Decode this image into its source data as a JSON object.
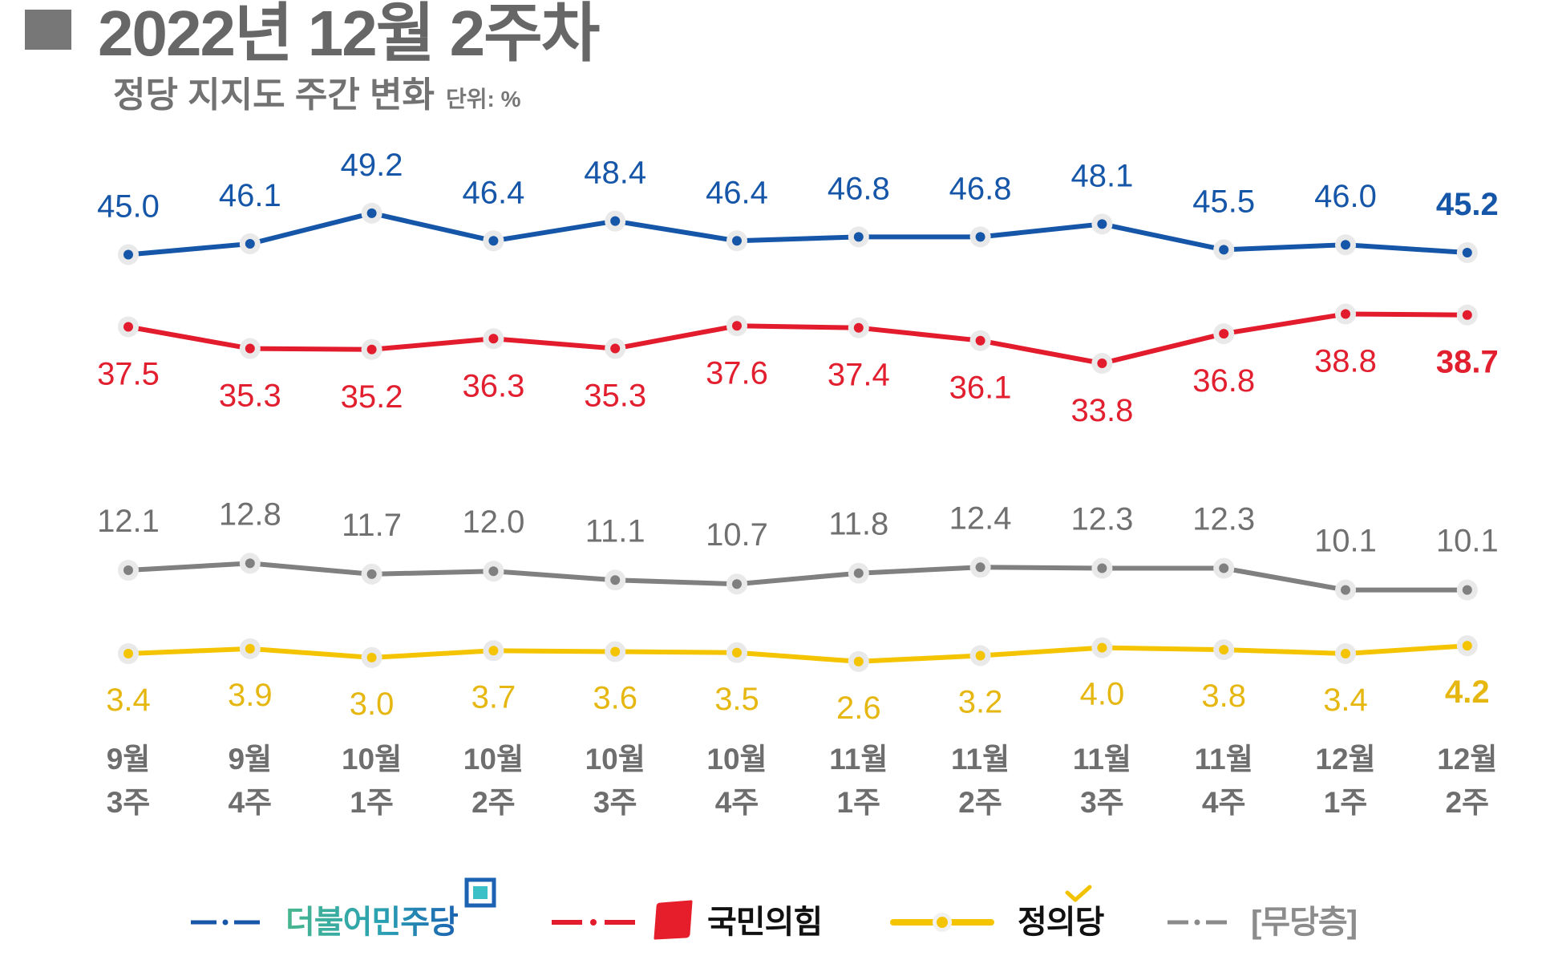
{
  "chart_data": {
    "type": "line",
    "title": "2022년 12월 2주차",
    "subtitle": "정당 지지도 주간 변화",
    "unit_label": "단위: %",
    "legend_position": "bottom",
    "categories": [
      {
        "month": "9월",
        "week": "3주"
      },
      {
        "month": "9월",
        "week": "4주"
      },
      {
        "month": "10월",
        "week": "1주"
      },
      {
        "month": "10월",
        "week": "2주"
      },
      {
        "month": "10월",
        "week": "3주"
      },
      {
        "month": "10월",
        "week": "4주"
      },
      {
        "month": "11월",
        "week": "1주"
      },
      {
        "month": "11월",
        "week": "2주"
      },
      {
        "month": "11월",
        "week": "3주"
      },
      {
        "month": "11월",
        "week": "4주"
      },
      {
        "month": "12월",
        "week": "1주"
      },
      {
        "month": "12월",
        "week": "2주"
      }
    ],
    "series": [
      {
        "name": "더불어민주당",
        "color": "#1656a8",
        "label_color": "#1656a8",
        "values": [
          45.0,
          46.1,
          49.2,
          46.4,
          48.4,
          46.4,
          46.8,
          46.8,
          48.1,
          45.5,
          46.0,
          45.2
        ]
      },
      {
        "name": "국민의힘",
        "color": "#e31c2d",
        "label_color": "#e21f2f",
        "values": [
          37.5,
          35.3,
          35.2,
          36.3,
          35.3,
          37.6,
          37.4,
          36.1,
          33.8,
          36.8,
          38.8,
          38.7
        ]
      },
      {
        "name": "정의당",
        "color": "#f5c400",
        "label_color": "#e6b711",
        "values": [
          3.4,
          3.9,
          3.0,
          3.7,
          3.6,
          3.5,
          2.6,
          3.2,
          4.0,
          3.8,
          3.4,
          4.2
        ]
      },
      {
        "name": "[무당층]",
        "color": "#808080",
        "label_color": "#707070",
        "values": [
          12.1,
          12.8,
          11.7,
          12.0,
          11.1,
          10.7,
          11.8,
          12.4,
          12.3,
          12.3,
          10.1,
          10.1
        ]
      }
    ]
  }
}
